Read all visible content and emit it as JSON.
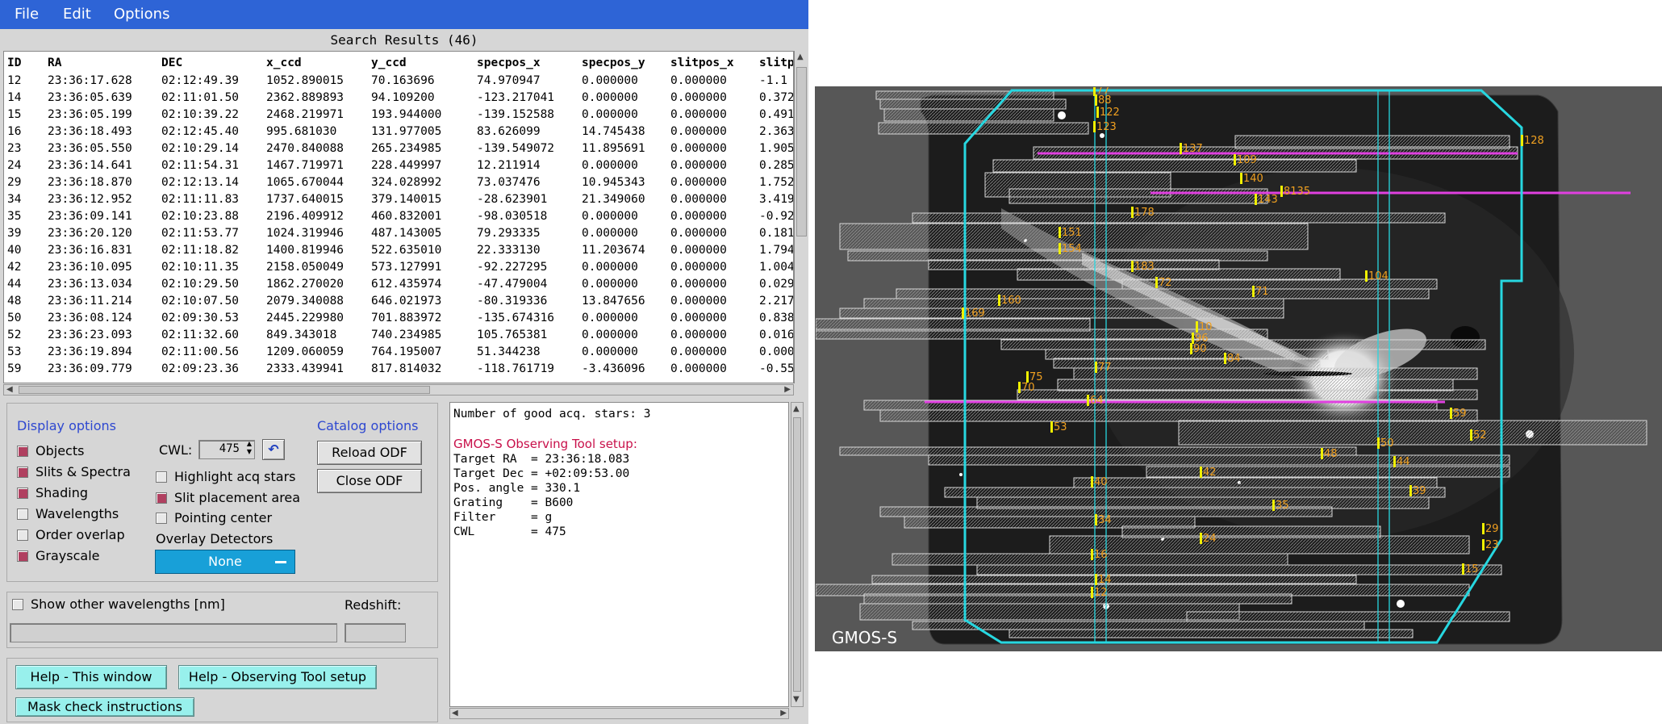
{
  "menu": {
    "items": [
      "File",
      "Edit",
      "Options"
    ]
  },
  "results": {
    "title": "Search Results (46)",
    "columns": [
      "ID",
      "RA",
      "DEC",
      "x_ccd",
      "y_ccd",
      "specpos_x",
      "specpos_y",
      "slitpos_x",
      "slitp"
    ],
    "rows": [
      [
        "12",
        "23:36:17.628",
        "02:12:49.39",
        "1052.890015",
        "70.163696",
        "74.970947",
        "0.000000",
        "0.000000",
        "-1.1"
      ],
      [
        "14",
        "23:36:05.639",
        "02:11:01.50",
        "2362.889893",
        "94.109200",
        "-123.217041",
        "0.000000",
        "0.000000",
        "0.372"
      ],
      [
        "15",
        "23:36:05.199",
        "02:10:39.22",
        "2468.219971",
        "193.944000",
        "-139.152588",
        "0.000000",
        "0.000000",
        "0.491"
      ],
      [
        "16",
        "23:36:18.493",
        "02:12:45.40",
        "995.681030",
        "131.977005",
        "83.626099",
        "14.745438",
        "0.000000",
        "2.363"
      ],
      [
        "23",
        "23:36:05.550",
        "02:10:29.14",
        "2470.840088",
        "265.234985",
        "-139.549072",
        "11.895691",
        "0.000000",
        "1.905"
      ],
      [
        "24",
        "23:36:14.641",
        "02:11:54.31",
        "1467.719971",
        "228.449997",
        "12.211914",
        "0.000000",
        "0.000000",
        "0.285"
      ],
      [
        "29",
        "23:36:18.870",
        "02:12:13.14",
        "1065.670044",
        "324.028992",
        "73.037476",
        "10.945343",
        "0.000000",
        "1.752"
      ],
      [
        "34",
        "23:36:12.952",
        "02:11:11.83",
        "1737.640015",
        "379.140015",
        "-28.623901",
        "21.349060",
        "0.000000",
        "3.419"
      ],
      [
        "35",
        "23:36:09.141",
        "02:10:23.88",
        "2196.409912",
        "460.832001",
        "-98.030518",
        "0.000000",
        "0.000000",
        "-0.92"
      ],
      [
        "39",
        "23:36:20.120",
        "02:11:53.77",
        "1024.319946",
        "487.143005",
        "79.293335",
        "0.000000",
        "0.000000",
        "0.181"
      ],
      [
        "40",
        "23:36:16.831",
        "02:11:18.82",
        "1400.819946",
        "522.635010",
        "22.333130",
        "11.203674",
        "0.000000",
        "1.794"
      ],
      [
        "42",
        "23:36:10.095",
        "02:10:11.35",
        "2158.050049",
        "573.127991",
        "-92.227295",
        "0.000000",
        "0.000000",
        "1.004"
      ],
      [
        "44",
        "23:36:13.034",
        "02:10:29.50",
        "1862.270020",
        "612.435974",
        "-47.479004",
        "0.000000",
        "0.000000",
        "0.029"
      ],
      [
        "48",
        "23:36:11.214",
        "02:10:07.50",
        "2079.340088",
        "646.021973",
        "-80.319336",
        "13.847656",
        "0.000000",
        "2.217"
      ],
      [
        "50",
        "23:36:08.124",
        "02:09:30.53",
        "2445.229980",
        "701.883972",
        "-135.674316",
        "0.000000",
        "0.000000",
        "0.838"
      ],
      [
        "52",
        "23:36:23.093",
        "02:11:32.60",
        "849.343018",
        "740.234985",
        "105.765381",
        "0.000000",
        "0.000000",
        "0.016"
      ],
      [
        "53",
        "23:36:19.894",
        "02:11:00.56",
        "1209.060059",
        "764.195007",
        "51.344238",
        "0.000000",
        "0.000000",
        "0.000"
      ],
      [
        "59",
        "23:36:09.779",
        "02:09:23.36",
        "2333.439941",
        "817.814032",
        "-118.761719",
        "-3.436096",
        "0.000000",
        "-0.55"
      ]
    ]
  },
  "display_options": {
    "title": "Display options",
    "items": [
      {
        "label": "Objects",
        "checked": true
      },
      {
        "label": "Slits & Spectra",
        "checked": true
      },
      {
        "label": "Shading",
        "checked": true
      },
      {
        "label": "Wavelengths",
        "checked": false
      },
      {
        "label": "Order overlap",
        "checked": false
      },
      {
        "label": "Grayscale",
        "checked": true
      }
    ]
  },
  "cwl": {
    "label": "CWL:",
    "value": "475"
  },
  "mid_options": {
    "items": [
      {
        "label": "Highlight acq stars",
        "checked": false
      },
      {
        "label": "Slit placement area",
        "checked": true
      },
      {
        "label": "Pointing center",
        "checked": false
      }
    ],
    "overlay_label": "Overlay Detectors",
    "overlay_value": "None"
  },
  "catalog_options": {
    "title": "Catalog options",
    "reload": "Reload ODF",
    "close": "Close ODF"
  },
  "wavelengths": {
    "label": "Show other wavelengths [nm]",
    "redshift_label": "Redshift:"
  },
  "help": {
    "this_window": "Help - This window",
    "ot_setup": "Help - Observing Tool setup",
    "mask_check": "Mask check instructions"
  },
  "setup": {
    "acq_line": "Number of good acq. stars: 3",
    "heading": "GMOS-S Observing Tool setup:",
    "lines": [
      "Target RA  = 23:36:18.083",
      "Target Dec = +02:09:53.00",
      "Pos. angle = 330.1",
      "Grating    = B600",
      "Filter     = g",
      "CWL        = 475"
    ]
  },
  "image": {
    "instrument_label": "GMOS-S",
    "colors": {
      "field": "#27d7e0",
      "acq": "#e040e0",
      "label": "#f0a020",
      "slit": "#f0f000"
    },
    "slit_labels": [
      {
        "id": "77"
      },
      {
        "id": "88"
      },
      {
        "id": "122"
      },
      {
        "id": "123"
      },
      {
        "id": "128"
      },
      {
        "id": "137"
      },
      {
        "id": "109"
      },
      {
        "id": "140"
      },
      {
        "id": "8135"
      },
      {
        "id": "143"
      },
      {
        "id": "178"
      },
      {
        "id": "151"
      },
      {
        "id": "154"
      },
      {
        "id": "183"
      },
      {
        "id": "104"
      },
      {
        "id": "72"
      },
      {
        "id": "71"
      },
      {
        "id": "160"
      },
      {
        "id": "169"
      },
      {
        "id": "10"
      },
      {
        "id": "96"
      },
      {
        "id": "90"
      },
      {
        "id": "84"
      },
      {
        "id": "77"
      },
      {
        "id": "75"
      },
      {
        "id": "70"
      },
      {
        "id": "64"
      },
      {
        "id": "59"
      },
      {
        "id": "53"
      },
      {
        "id": "52"
      },
      {
        "id": "50"
      },
      {
        "id": "48"
      },
      {
        "id": "44"
      },
      {
        "id": "42"
      },
      {
        "id": "40"
      },
      {
        "id": "39"
      },
      {
        "id": "35"
      },
      {
        "id": "34"
      },
      {
        "id": "29"
      },
      {
        "id": "24"
      },
      {
        "id": "23"
      },
      {
        "id": "16"
      },
      {
        "id": "15"
      },
      {
        "id": "14"
      },
      {
        "id": "12"
      }
    ]
  }
}
